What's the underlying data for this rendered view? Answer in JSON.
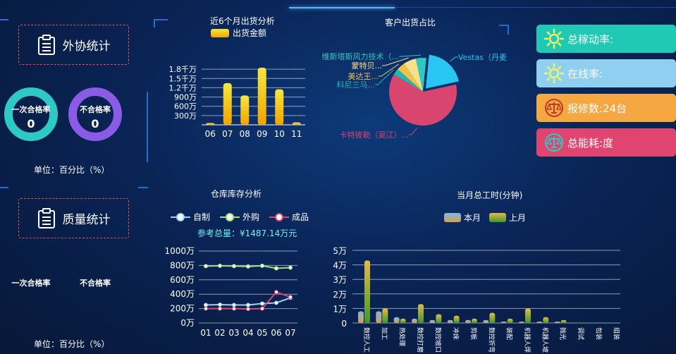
{
  "left_panel": {
    "waixie": {
      "title": "外协统计",
      "rings": [
        {
          "label": "一次合格率",
          "value": "0",
          "color": "#2ec9c4"
        },
        {
          "label": "不合格率",
          "value": "0",
          "color": "#8a5ce6"
        }
      ],
      "unit": "单位：百分比（%）"
    },
    "zhiliang": {
      "title": "质量统计",
      "labels": [
        "一次合格率",
        "不合格率"
      ],
      "unit": "单位：百分比（%）"
    }
  },
  "shipment_chart": {
    "title": "近6个月出货分析",
    "legend": "出货金额",
    "chart_data": {
      "type": "bar",
      "categories": [
        "06",
        "07",
        "08",
        "09",
        "10",
        "11"
      ],
      "values": [
        60,
        1350,
        950,
        1850,
        1150,
        80
      ],
      "ytick_labels": [
        "300万",
        "600万",
        "900万",
        "1.2千万",
        "1.5千万",
        "1.8千万"
      ],
      "ytick_values": [
        300,
        600,
        900,
        1200,
        1500,
        1800
      ],
      "ylim": [
        0,
        2100
      ]
    }
  },
  "customer_pie": {
    "title": "客户出货占比",
    "chart_data": {
      "type": "pie",
      "labels": [
        "Vestas（丹麦",
        "卡特彼勒（吴江）...",
        "科尼三马...",
        "美达王...",
        "蒙特贝...",
        "维斯塔斯风力技术（..."
      ],
      "values": [
        20,
        62,
        3,
        4,
        6,
        5
      ],
      "colors": [
        "#29c6f2",
        "#d8456e",
        "#1fb9b0",
        "#f2c04c",
        "#f7e08a",
        "#2ec9c4"
      ]
    }
  },
  "stats": [
    {
      "label": "总稼动率:",
      "color": "#1fc9b3",
      "icon": "sun-icon"
    },
    {
      "label": "在线率:",
      "color": "#8fcff0",
      "icon": "sun-icon"
    },
    {
      "label": "报修数:24台",
      "color": "#f5a742",
      "icon": "scale-icon"
    },
    {
      "label": "总能耗:度",
      "color": "#e0456f",
      "icon": "scale-icon"
    }
  ],
  "inventory_chart": {
    "title": "仓库库存分析",
    "legend": [
      "自制",
      "外购",
      "成品"
    ],
    "total": "参考总量：¥1487.14万元",
    "chart_data": {
      "type": "line",
      "x": [
        "01",
        "02",
        "03",
        "04",
        "05",
        "06",
        "07"
      ],
      "series": [
        {
          "name": "自制",
          "values": [
            250,
            255,
            250,
            250,
            270,
            280,
            350
          ],
          "color": "#9ad3f5"
        },
        {
          "name": "外购",
          "values": [
            790,
            795,
            790,
            785,
            795,
            760,
            770
          ],
          "color": "#9fe07a"
        },
        {
          "name": "成品",
          "values": [
            200,
            200,
            200,
            195,
            200,
            430,
            360
          ],
          "color": "#e0456f"
        }
      ],
      "ytick_labels": [
        "0万",
        "200万",
        "400万",
        "600万",
        "800万",
        "1000万"
      ],
      "ylim": [
        0,
        1000
      ]
    }
  },
  "worktime_chart": {
    "title": "当月总工时(分钟)",
    "legend": [
      "本月",
      "上月"
    ],
    "chart_data": {
      "type": "bar",
      "categories": [
        "数控人工",
        "加工",
        "热处理",
        "数控打磨",
        "数控坡口",
        "冲床",
        "剪板",
        "数控折弯",
        "装配",
        "机器人焊接",
        "机器人坡口",
        "抛光",
        "调试",
        "包装",
        "组装"
      ],
      "series": [
        {
          "name": "本月",
          "values": [
            8000,
            8000,
            4000,
            3000,
            2000,
            2000,
            2000,
            2000,
            1000,
            1000,
            1000,
            1000,
            0,
            0,
            0
          ]
        },
        {
          "name": "上月",
          "values": [
            43000,
            10000,
            3000,
            13000,
            6000,
            5000,
            3000,
            7000,
            3000,
            10000,
            4000,
            2000,
            0,
            0,
            0
          ]
        }
      ],
      "ytick_labels": [
        "0",
        "1万",
        "2万",
        "3万",
        "4万",
        "5万"
      ],
      "ylim": [
        0,
        50000
      ]
    }
  }
}
